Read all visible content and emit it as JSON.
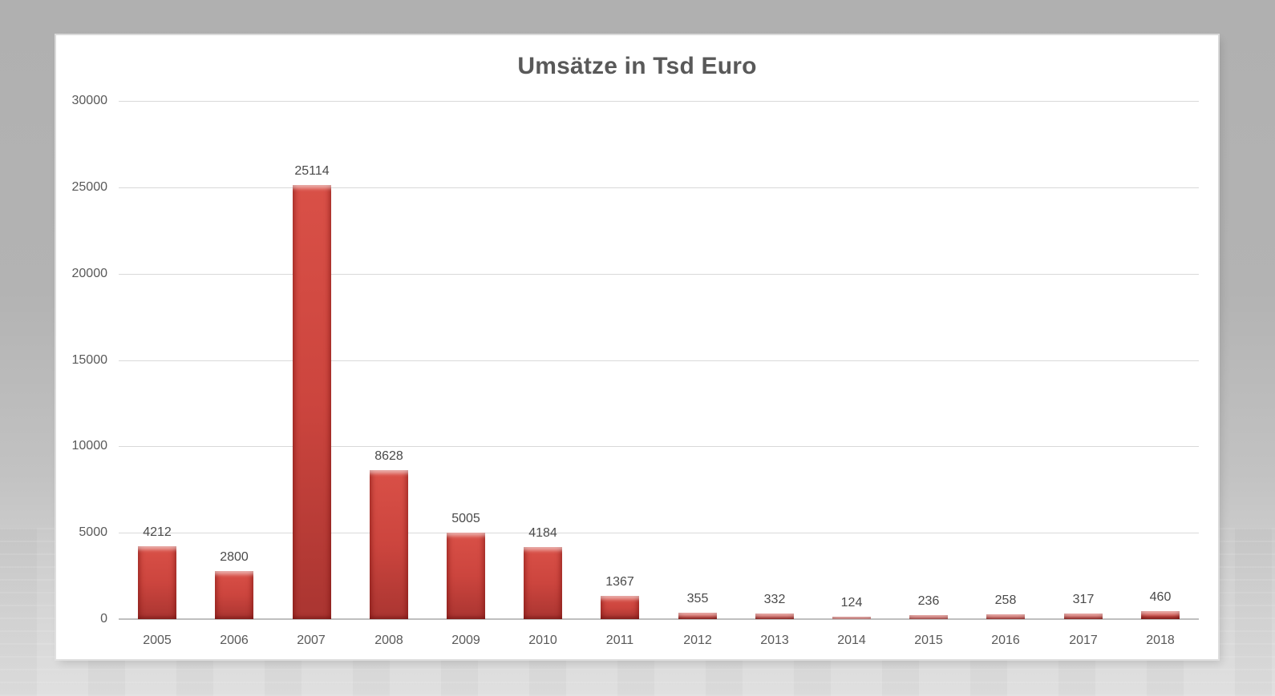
{
  "chart_data": {
    "type": "bar",
    "title": "Umsätze in Tsd Euro",
    "categories": [
      "2005",
      "2006",
      "2007",
      "2008",
      "2009",
      "2010",
      "2011",
      "2012",
      "2013",
      "2014",
      "2015",
      "2016",
      "2017",
      "2018"
    ],
    "values": [
      4212,
      2800,
      25114,
      8628,
      5005,
      4184,
      1367,
      355,
      332,
      124,
      236,
      258,
      317,
      460
    ],
    "data_labels": [
      "4212",
      "2800",
      "25114",
      "8628",
      "5005",
      "4184",
      "1367",
      "355",
      "332",
      "124",
      "236",
      "258",
      "317",
      "460"
    ],
    "xlabel": "",
    "ylabel": "",
    "ylim": [
      0,
      30000
    ],
    "yticks": [
      0,
      5000,
      10000,
      15000,
      20000,
      25000,
      30000
    ],
    "ytick_labels": [
      "0",
      "5000",
      "10000",
      "15000",
      "20000",
      "25000",
      "30000"
    ],
    "grid": true,
    "legend_position": "none",
    "colors": {
      "bar_fill_top": "#d95047",
      "bar_fill_bottom": "#aa3531",
      "bar_highlight": "#e8625a",
      "title_text": "#595959",
      "axis_text": "#595959",
      "data_label_text": "#4a4a4a",
      "gridline": "#d9d9d9",
      "axis_line": "#bfbfbf",
      "panel_background": "#ffffff",
      "page_background": "#b3b3b3"
    }
  }
}
